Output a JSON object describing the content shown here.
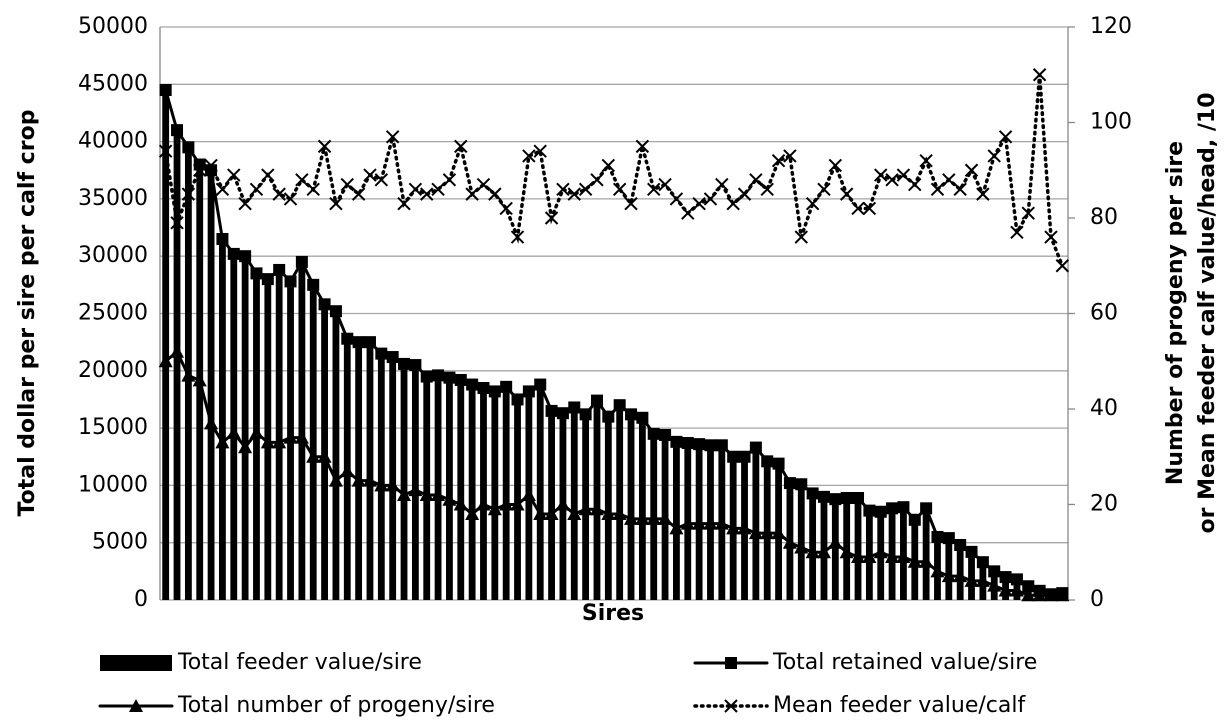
{
  "chart_data": {
    "type": "bar_line",
    "xlabel": "Sires",
    "ylabel": "Total dollar per sire per calf crop",
    "y2label": [
      "Number of progeny per sire",
      "or Mean feeder calf value/head, /10"
    ],
    "categories": [
      null,
      null,
      null,
      null,
      null,
      null,
      null,
      null,
      null,
      null,
      null,
      null,
      null,
      null,
      null,
      null,
      null,
      null,
      null,
      null,
      null,
      null,
      null,
      null,
      null,
      null,
      null,
      null,
      null,
      null,
      null,
      null,
      null,
      null,
      null,
      null,
      null,
      null,
      null,
      null,
      null,
      null,
      null,
      null,
      null,
      null,
      null,
      null,
      null,
      null,
      null,
      null,
      null,
      null,
      null,
      null,
      null,
      null,
      null,
      null,
      null,
      null,
      null,
      null,
      null,
      null,
      null,
      null,
      null,
      null,
      null,
      null,
      null,
      null,
      null,
      null,
      null,
      null,
      null,
      null
    ],
    "ylim": [
      0,
      50000
    ],
    "yticks": [
      0,
      5000,
      10000,
      15000,
      20000,
      25000,
      30000,
      35000,
      40000,
      45000,
      50000
    ],
    "y2lim": [
      0,
      120
    ],
    "y2ticks": [
      0,
      20,
      40,
      60,
      80,
      100,
      120
    ],
    "grid": true,
    "series": [
      {
        "name": "Total feeder value/sire",
        "type": "bar",
        "color": "#000000",
        "values": [
          44000,
          40500,
          39000,
          37500,
          37000,
          31000,
          29800,
          29500,
          28000,
          27500,
          28300,
          27300,
          29000,
          27000,
          25300,
          24700,
          22300,
          22000,
          22000,
          21000,
          20700,
          20100,
          20000,
          19000,
          19100,
          18900,
          18700,
          18300,
          18000,
          17700,
          18100,
          17000,
          17700,
          18300,
          16000,
          15800,
          16300,
          15700,
          16900,
          15500,
          16500,
          15700,
          15400,
          14000,
          13900,
          13300,
          13200,
          13100,
          13000,
          13000,
          12000,
          12000,
          12800,
          11600,
          11400,
          9700,
          9600,
          8800,
          8500,
          8300,
          8400,
          8400,
          7300,
          7200,
          7500,
          7600,
          6500,
          7500,
          5000,
          4900,
          4300,
          3700,
          2800,
          2000,
          1500,
          1300,
          800,
          500,
          300,
          400
        ]
      },
      {
        "name": "Total retained value/sire",
        "type": "line",
        "marker": "square",
        "color": "#000000",
        "values": [
          44500,
          41000,
          39500,
          38000,
          37500,
          31500,
          30200,
          30000,
          28500,
          28000,
          28800,
          27800,
          29500,
          27500,
          25800,
          25200,
          22800,
          22500,
          22500,
          21500,
          21200,
          20600,
          20500,
          19500,
          19600,
          19400,
          19200,
          18800,
          18500,
          18200,
          18600,
          17500,
          18200,
          18800,
          16500,
          16300,
          16800,
          16200,
          17400,
          16000,
          17000,
          16200,
          15900,
          14500,
          14400,
          13800,
          13700,
          13600,
          13500,
          13500,
          12500,
          12500,
          13300,
          12100,
          11900,
          10200,
          10100,
          9300,
          9000,
          8800,
          8900,
          8900,
          7800,
          7700,
          8000,
          8100,
          7000,
          8000,
          5500,
          5400,
          4800,
          4200,
          3300,
          2500,
          2000,
          1800,
          1200,
          800,
          500,
          600
        ]
      },
      {
        "name": "Total number of progeny/sire",
        "type": "line",
        "marker": "triangle",
        "axis": "y2",
        "color": "#000000",
        "values": [
          50,
          52,
          47,
          46,
          37,
          33,
          35,
          32,
          35,
          33,
          33,
          34,
          34,
          30,
          30,
          25,
          27,
          25,
          25,
          24,
          24,
          22,
          23,
          22,
          22,
          21,
          20,
          18,
          20,
          19,
          20,
          20,
          22,
          18,
          18,
          20,
          18,
          19,
          19,
          18,
          18,
          17,
          17,
          17,
          17,
          15,
          16,
          16,
          16,
          16,
          15,
          15,
          14,
          14,
          14,
          12,
          11,
          10,
          10,
          12,
          10,
          9,
          9,
          10,
          9,
          9,
          8,
          8,
          6,
          5,
          5,
          4,
          4,
          3,
          2,
          2,
          1,
          1,
          1,
          1
        ]
      },
      {
        "name": "Mean feeder value/calf",
        "type": "line",
        "marker": "x",
        "dash": "dotted",
        "axis": "y2",
        "color": "#000000",
        "values": [
          94,
          79,
          85,
          90,
          91,
          86,
          89,
          83,
          86,
          89,
          85,
          84,
          88,
          86,
          95,
          83,
          87,
          85,
          89,
          88,
          97,
          83,
          86,
          85,
          86,
          88,
          95,
          85,
          87,
          85,
          82,
          76,
          93,
          94,
          80,
          86,
          85,
          86,
          88,
          91,
          86,
          83,
          95,
          86,
          87,
          84,
          81,
          83,
          84,
          87,
          83,
          85,
          88,
          86,
          92,
          93,
          76,
          83,
          86,
          91,
          85,
          82,
          82,
          89,
          88,
          89,
          87,
          92,
          86,
          88,
          86,
          90,
          85,
          93,
          97,
          77,
          81,
          110,
          76,
          70
        ]
      }
    ]
  }
}
